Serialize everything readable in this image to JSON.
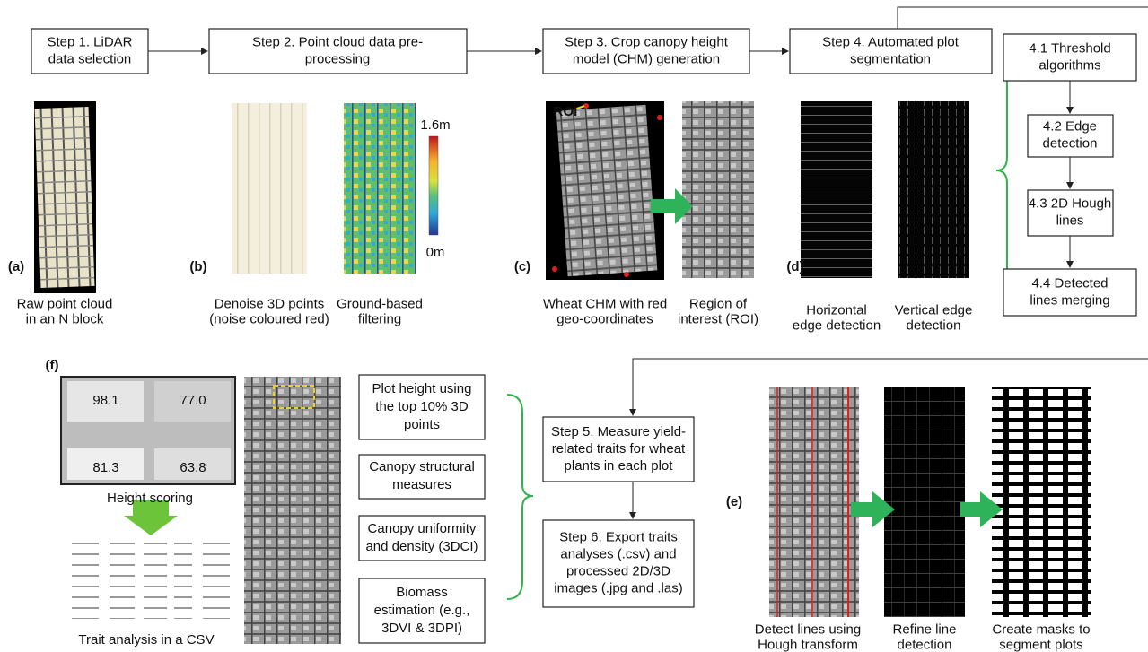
{
  "steps": [
    {
      "lines": [
        "Step 1. LiDAR",
        "data selection"
      ]
    },
    {
      "lines": [
        "Step 2. Point cloud data pre-",
        "processing"
      ]
    },
    {
      "lines": [
        "Step 3. Crop canopy height",
        "model (CHM) generation"
      ]
    },
    {
      "lines": [
        "Step 4. Automated plot",
        "segmentation"
      ]
    },
    {
      "lines": [
        "Step 5. Measure yield-",
        "related traits for wheat",
        "plants in each plot"
      ]
    },
    {
      "lines": [
        "Step 6. Export traits",
        "analyses (.csv) and",
        "processed 2D/3D",
        "images (.jpg and .las)"
      ]
    }
  ],
  "substeps": [
    {
      "lines": [
        "4.1 Threshold",
        "algorithms"
      ]
    },
    {
      "lines": [
        "4.2  Edge",
        "detection"
      ]
    },
    {
      "lines": [
        "4.3 2D Hough",
        "lines"
      ]
    },
    {
      "lines": [
        "4.4 Detected",
        "lines merging"
      ]
    }
  ],
  "traits": [
    {
      "lines": [
        "Plot height using",
        "the top 10% 3D",
        "points"
      ]
    },
    {
      "lines": [
        "Canopy structural",
        "measures"
      ]
    },
    {
      "lines": [
        "Canopy uniformity",
        "and density (3DCI)"
      ]
    },
    {
      "lines": [
        "Biomass",
        "estimation (e.g.,",
        "3DVI & 3DPI)"
      ]
    }
  ],
  "panels": [
    "(a)",
    "(b)",
    "(c)",
    "(d)",
    "(f)",
    "(e)"
  ],
  "captions": [
    {
      "lines": [
        "Raw point cloud",
        "in an N block"
      ]
    },
    {
      "lines": [
        "Denoise 3D points",
        "(noise coloured red)"
      ]
    },
    {
      "lines": [
        "Ground-based",
        "filtering"
      ]
    },
    {
      "lines": [
        "Wheat CHM with red",
        "geo-coordinates"
      ]
    },
    {
      "lines": [
        "Region of",
        "interest (ROI)"
      ]
    },
    {
      "lines": [
        "Horizontal",
        "edge detection"
      ]
    },
    {
      "lines": [
        "Vertical edge",
        "detection"
      ]
    },
    {
      "lines": [
        "Height scoring"
      ]
    },
    {
      "lines": [
        "Trait analysis in a CSV"
      ]
    },
    {
      "lines": [
        "Detect lines using",
        "Hough transform"
      ]
    },
    {
      "lines": [
        "Refine line",
        "detection"
      ]
    },
    {
      "lines": [
        "Create masks to",
        "segment plots"
      ]
    }
  ],
  "colorbar": {
    "max": "1.6m",
    "min": "0m"
  },
  "roi": "ROI",
  "heights": [
    "98.1",
    "77.0",
    "81.3",
    "63.8"
  ]
}
